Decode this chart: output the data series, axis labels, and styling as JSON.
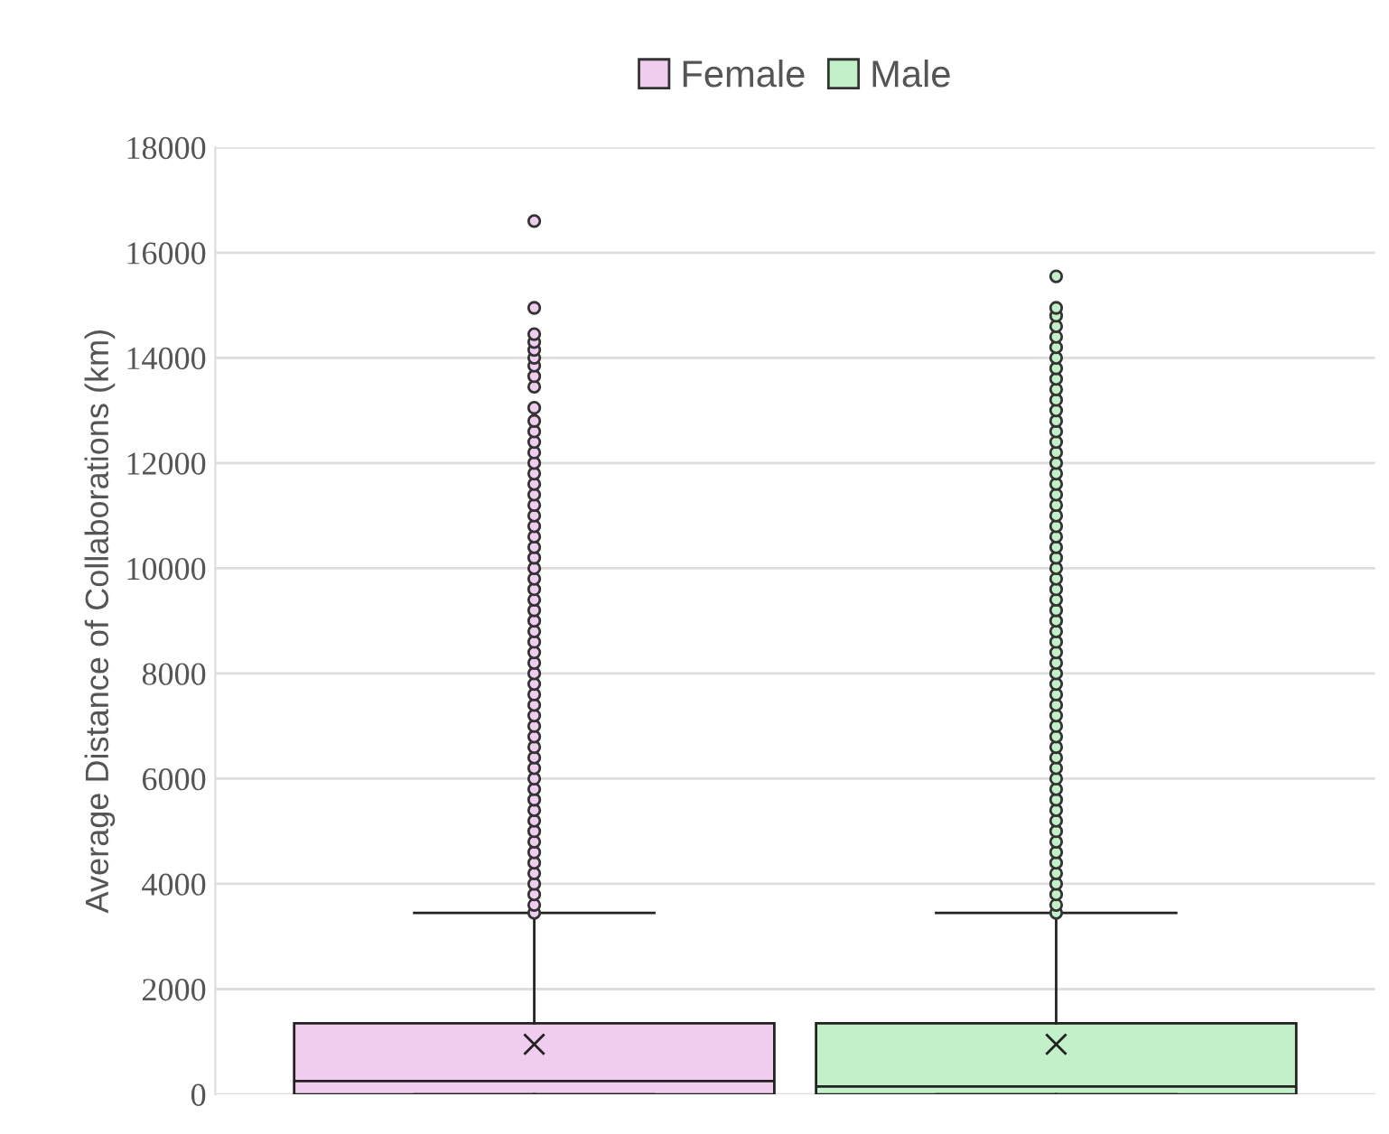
{
  "chart_data": {
    "type": "box",
    "ylabel": "Average Distance of Collaborations (km)",
    "categories": [
      null
    ],
    "ylim": [
      0,
      18000
    ],
    "yticks": [
      0,
      2000,
      4000,
      6000,
      8000,
      10000,
      12000,
      14000,
      16000,
      18000
    ],
    "grid": "y",
    "legend": "top",
    "tick_labels": "y",
    "series": [
      {
        "name": "Female",
        "color": "#f0cdee",
        "boxes": [
          {
            "low": 0,
            "q1": 0,
            "median": 250,
            "q3": 1350,
            "high": 3450,
            "mean": 950,
            "outliers": [
              3450,
              3600,
              3800,
              4000,
              4200,
              4400,
              4600,
              4800,
              5000,
              5200,
              5400,
              5600,
              5800,
              6000,
              6200,
              6400,
              6600,
              6800,
              7000,
              7200,
              7400,
              7600,
              7800,
              8000,
              8200,
              8400,
              8600,
              8800,
              9000,
              9200,
              9400,
              9600,
              9800,
              10000,
              10200,
              10400,
              10600,
              10800,
              11000,
              11200,
              11400,
              11600,
              11800,
              12000,
              12200,
              12400,
              12600,
              12800,
              13050,
              13450,
              13650,
              13850,
              14000,
              14150,
              14300,
              14450,
              14950,
              16600
            ]
          }
        ]
      },
      {
        "name": "Male",
        "color": "#c2f0c8",
        "boxes": [
          {
            "low": 0,
            "q1": 0,
            "median": 150,
            "q3": 1350,
            "high": 3450,
            "mean": 950,
            "outliers": [
              3450,
              3600,
              3800,
              4000,
              4200,
              4400,
              4600,
              4800,
              5000,
              5200,
              5400,
              5600,
              5800,
              6000,
              6200,
              6400,
              6600,
              6800,
              7000,
              7200,
              7400,
              7600,
              7800,
              8000,
              8200,
              8400,
              8600,
              8800,
              9000,
              9200,
              9400,
              9600,
              9800,
              10000,
              10200,
              10400,
              10600,
              10800,
              11000,
              11200,
              11400,
              11600,
              11800,
              12000,
              12200,
              12400,
              12600,
              12800,
              13000,
              13200,
              13400,
              13600,
              13800,
              14000,
              14200,
              14400,
              14600,
              14800,
              14950,
              15550
            ]
          }
        ]
      }
    ]
  }
}
